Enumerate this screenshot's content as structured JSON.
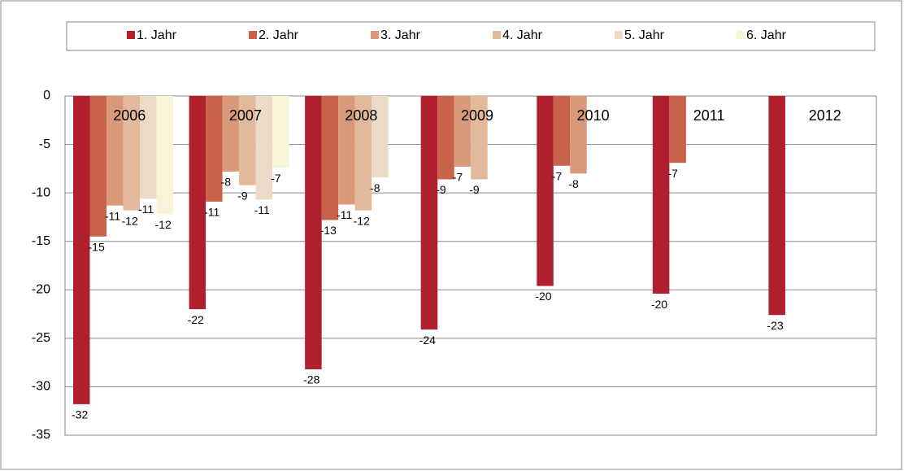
{
  "chart_data": {
    "type": "bar",
    "categories": [
      "2006",
      "2007",
      "2008",
      "2009",
      "2010",
      "2011",
      "2012"
    ],
    "series": [
      {
        "name": "1. Jahr",
        "color": "#b01f2e",
        "values": [
          -31.8,
          -22.0,
          -28.2,
          -24.1,
          -19.6,
          -20.4,
          -22.6
        ],
        "value_labels": [
          "-32",
          "-22",
          "-28",
          "-24",
          "-20",
          "-20",
          "-23"
        ]
      },
      {
        "name": "2. Jahr",
        "color": "#c8624a",
        "values": [
          -14.5,
          -10.9,
          -12.8,
          -8.6,
          -7.2,
          -6.9,
          null
        ],
        "value_labels": [
          "-15",
          "-11",
          "-13",
          "-9",
          "-7",
          "-7",
          null
        ]
      },
      {
        "name": "3. Jahr",
        "color": "#d99a7c",
        "values": [
          -11.3,
          -7.8,
          -11.2,
          -7.3,
          -8.0,
          null,
          null
        ],
        "value_labels": [
          "-11",
          "-8",
          "-11",
          "-7",
          "-8",
          null,
          null
        ]
      },
      {
        "name": "4. Jahr",
        "color": "#e3b99b",
        "values": [
          -11.8,
          -9.2,
          -11.8,
          -8.6,
          null,
          null,
          null
        ],
        "value_labels": [
          "-12",
          "-9",
          "-12",
          "-9",
          null,
          null,
          null
        ]
      },
      {
        "name": "5. Jahr",
        "color": "#ecd9c6",
        "values": [
          -10.6,
          -10.7,
          -8.4,
          null,
          null,
          null,
          null
        ],
        "value_labels": [
          "-11",
          "-11",
          "-8",
          null,
          null,
          null,
          null
        ]
      },
      {
        "name": "6. Jahr",
        "color": "#f7f4d8",
        "values": [
          -12.2,
          -7.4,
          null,
          null,
          null,
          null,
          null
        ],
        "value_labels": [
          "-12",
          "-7",
          null,
          null,
          null,
          null,
          null
        ]
      }
    ],
    "ylim": [
      -35,
      0
    ],
    "yticks": [
      0,
      -5,
      -10,
      -15,
      -20,
      -25,
      -30,
      -35
    ],
    "grid": true,
    "legend": "top"
  }
}
